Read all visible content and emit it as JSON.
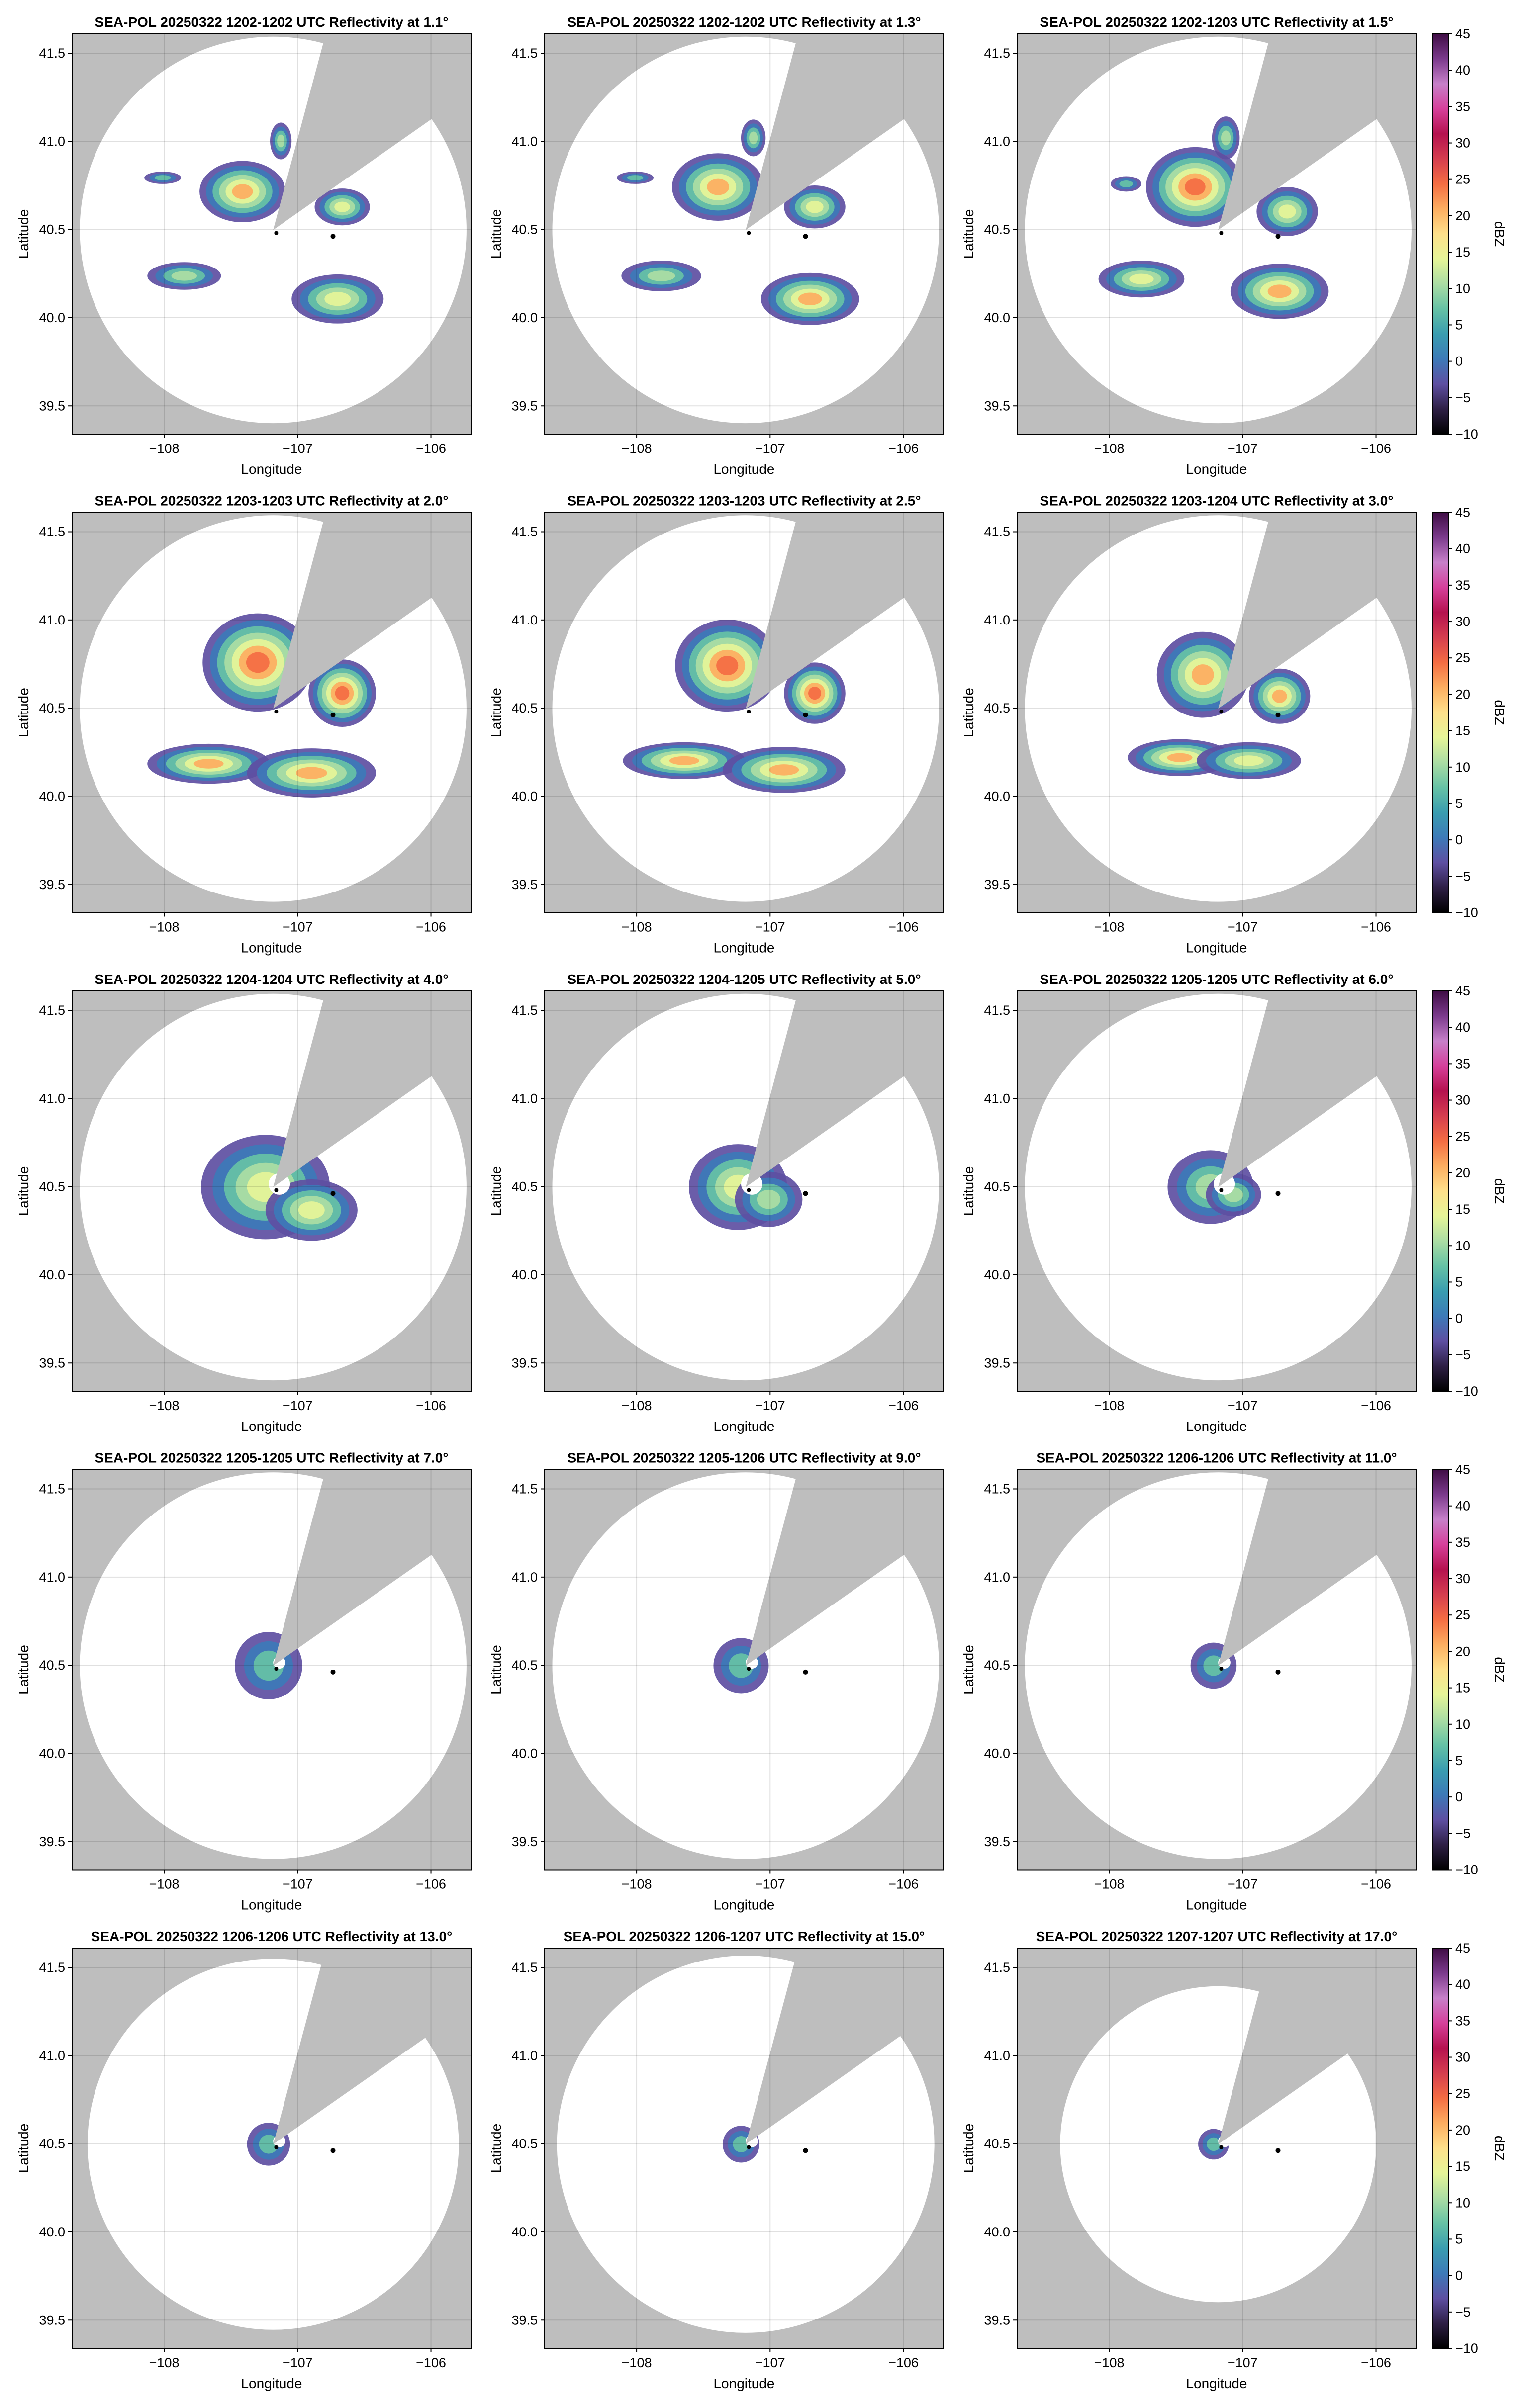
{
  "chart_data": [
    {
      "type": "ppi",
      "title": "SEA-POL 20250322 1202-1202 UTC Reflectivity at 1.1°",
      "xlabel": "Longitude",
      "ylabel": "Latitude",
      "xlim": [
        -108.69,
        -105.7
      ],
      "ylim": [
        39.34,
        41.61
      ],
      "xticks": [
        {
          "value": -108,
          "label": "−108"
        },
        {
          "value": -107,
          "label": "−107"
        },
        {
          "value": -106,
          "label": "−106"
        }
      ],
      "yticks": [
        39.5,
        {
          "value": 40,
          "label": "40.0"
        },
        40.5,
        {
          "value": 41,
          "label": "41.0"
        },
        41.5
      ],
      "grid": true
    },
    {
      "type": "ppi",
      "title": "SEA-POL 20250322 1202-1202 UTC Reflectivity at 1.3°",
      "xlabel": "Longitude",
      "ylabel": "Latitude",
      "xlim": [
        -108.69,
        -105.7
      ],
      "ylim": [
        39.34,
        41.61
      ],
      "xticks": [
        {
          "value": -108,
          "label": "−108"
        },
        {
          "value": -107,
          "label": "−107"
        },
        {
          "value": -106,
          "label": "−106"
        }
      ],
      "yticks": [
        39.5,
        {
          "value": 40,
          "label": "40.0"
        },
        40.5,
        {
          "value": 41,
          "label": "41.0"
        },
        41.5
      ],
      "grid": true
    },
    {
      "type": "ppi",
      "title": "SEA-POL 20250322 1202-1203 UTC Reflectivity at 1.5°",
      "xlabel": "Longitude",
      "ylabel": "Latitude",
      "xlim": [
        -108.69,
        -105.7
      ],
      "ylim": [
        39.34,
        41.61
      ],
      "xticks": [
        {
          "value": -108,
          "label": "−108"
        },
        {
          "value": -107,
          "label": "−107"
        },
        {
          "value": -106,
          "label": "−106"
        }
      ],
      "yticks": [
        39.5,
        {
          "value": 40,
          "label": "40.0"
        },
        40.5,
        {
          "value": 41,
          "label": "41.0"
        },
        41.5
      ],
      "grid": true,
      "colorbar": {
        "label": "dBZ",
        "lim": [
          -10,
          45
        ],
        "ticks": [
          {
            "value": -10,
            "label": "−10"
          },
          {
            "value": -5,
            "label": "−5"
          },
          0,
          5,
          10,
          15,
          20,
          25,
          30,
          35,
          40,
          45
        ],
        "colors": [
          "#000000",
          "#2e1f45",
          "#5e4fa2",
          "#3d7ab8",
          "#3a9db0",
          "#66c2a5",
          "#abdda4",
          "#e6f598",
          "#fee08b",
          "#fdae61",
          "#f46d43",
          "#d53e4f",
          "#b5124f",
          "#d6409b",
          "#c780c9",
          "#7b3a8c",
          "#3f0d45"
        ]
      }
    },
    {
      "type": "ppi",
      "title": "SEA-POL 20250322 1203-1203 UTC Reflectivity at 2.0°",
      "xlabel": "Longitude",
      "ylabel": "Latitude",
      "xlim": [
        -108.69,
        -105.7
      ],
      "ylim": [
        39.34,
        41.61
      ],
      "xticks": [
        {
          "value": -108,
          "label": "−108"
        },
        {
          "value": -107,
          "label": "−107"
        },
        {
          "value": -106,
          "label": "−106"
        }
      ],
      "yticks": [
        39.5,
        {
          "value": 40,
          "label": "40.0"
        },
        40.5,
        {
          "value": 41,
          "label": "41.0"
        },
        41.5
      ],
      "grid": true
    },
    {
      "type": "ppi",
      "title": "SEA-POL 20250322 1203-1203 UTC Reflectivity at 2.5°",
      "xlabel": "Longitude",
      "ylabel": "Latitude",
      "xlim": [
        -108.69,
        -105.7
      ],
      "ylim": [
        39.34,
        41.61
      ],
      "xticks": [
        {
          "value": -108,
          "label": "−108"
        },
        {
          "value": -107,
          "label": "−107"
        },
        {
          "value": -106,
          "label": "−106"
        }
      ],
      "yticks": [
        39.5,
        {
          "value": 40,
          "label": "40.0"
        },
        40.5,
        {
          "value": 41,
          "label": "41.0"
        },
        41.5
      ],
      "grid": true
    },
    {
      "type": "ppi",
      "title": "SEA-POL 20250322 1203-1204 UTC Reflectivity at 3.0°",
      "xlabel": "Longitude",
      "ylabel": "Latitude",
      "xlim": [
        -108.69,
        -105.7
      ],
      "ylim": [
        39.34,
        41.61
      ],
      "xticks": [
        {
          "value": -108,
          "label": "−108"
        },
        {
          "value": -107,
          "label": "−107"
        },
        {
          "value": -106,
          "label": "−106"
        }
      ],
      "yticks": [
        39.5,
        {
          "value": 40,
          "label": "40.0"
        },
        40.5,
        {
          "value": 41,
          "label": "41.0"
        },
        41.5
      ],
      "grid": true,
      "colorbar": {
        "label": "dBZ",
        "lim": [
          -10,
          45
        ],
        "ticks": [
          {
            "value": -10,
            "label": "−10"
          },
          {
            "value": -5,
            "label": "−5"
          },
          0,
          5,
          10,
          15,
          20,
          25,
          30,
          35,
          40,
          45
        ],
        "colors": [
          "#000000",
          "#2e1f45",
          "#5e4fa2",
          "#3d7ab8",
          "#3a9db0",
          "#66c2a5",
          "#abdda4",
          "#e6f598",
          "#fee08b",
          "#fdae61",
          "#f46d43",
          "#d53e4f",
          "#b5124f",
          "#d6409b",
          "#c780c9",
          "#7b3a8c",
          "#3f0d45"
        ]
      }
    },
    {
      "type": "ppi",
      "title": "SEA-POL 20250322 1204-1204 UTC Reflectivity at 4.0°",
      "xlabel": "Longitude",
      "ylabel": "Latitude",
      "xlim": [
        -108.69,
        -105.7
      ],
      "ylim": [
        39.34,
        41.61
      ],
      "xticks": [
        {
          "value": -108,
          "label": "−108"
        },
        {
          "value": -107,
          "label": "−107"
        },
        {
          "value": -106,
          "label": "−106"
        }
      ],
      "yticks": [
        39.5,
        {
          "value": 40,
          "label": "40.0"
        },
        40.5,
        {
          "value": 41,
          "label": "41.0"
        },
        41.5
      ],
      "grid": true
    },
    {
      "type": "ppi",
      "title": "SEA-POL 20250322 1204-1205 UTC Reflectivity at 5.0°",
      "xlabel": "Longitude",
      "ylabel": "Latitude",
      "xlim": [
        -108.69,
        -105.7
      ],
      "ylim": [
        39.34,
        41.61
      ],
      "xticks": [
        {
          "value": -108,
          "label": "−108"
        },
        {
          "value": -107,
          "label": "−107"
        },
        {
          "value": -106,
          "label": "−106"
        }
      ],
      "yticks": [
        39.5,
        {
          "value": 40,
          "label": "40.0"
        },
        40.5,
        {
          "value": 41,
          "label": "41.0"
        },
        41.5
      ],
      "grid": true
    },
    {
      "type": "ppi",
      "title": "SEA-POL 20250322 1205-1205 UTC Reflectivity at 6.0°",
      "xlabel": "Longitude",
      "ylabel": "Latitude",
      "xlim": [
        -108.69,
        -105.7
      ],
      "ylim": [
        39.34,
        41.61
      ],
      "xticks": [
        {
          "value": -108,
          "label": "−108"
        },
        {
          "value": -107,
          "label": "−107"
        },
        {
          "value": -106,
          "label": "−106"
        }
      ],
      "yticks": [
        39.5,
        {
          "value": 40,
          "label": "40.0"
        },
        40.5,
        {
          "value": 41,
          "label": "41.0"
        },
        41.5
      ],
      "grid": true,
      "colorbar": {
        "label": "dBZ",
        "lim": [
          -10,
          45
        ],
        "ticks": [
          {
            "value": -10,
            "label": "−10"
          },
          {
            "value": -5,
            "label": "−5"
          },
          0,
          5,
          10,
          15,
          20,
          25,
          30,
          35,
          40,
          45
        ],
        "colors": [
          "#000000",
          "#2e1f45",
          "#5e4fa2",
          "#3d7ab8",
          "#3a9db0",
          "#66c2a5",
          "#abdda4",
          "#e6f598",
          "#fee08b",
          "#fdae61",
          "#f46d43",
          "#d53e4f",
          "#b5124f",
          "#d6409b",
          "#c780c9",
          "#7b3a8c",
          "#3f0d45"
        ]
      }
    },
    {
      "type": "ppi",
      "title": "SEA-POL 20250322 1205-1205 UTC Reflectivity at 7.0°",
      "xlabel": "Longitude",
      "ylabel": "Latitude",
      "xlim": [
        -108.69,
        -105.7
      ],
      "ylim": [
        39.34,
        41.61
      ],
      "xticks": [
        {
          "value": -108,
          "label": "−108"
        },
        {
          "value": -107,
          "label": "−107"
        },
        {
          "value": -106,
          "label": "−106"
        }
      ],
      "yticks": [
        39.5,
        {
          "value": 40,
          "label": "40.0"
        },
        40.5,
        {
          "value": 41,
          "label": "41.0"
        },
        41.5
      ],
      "grid": true
    },
    {
      "type": "ppi",
      "title": "SEA-POL 20250322 1205-1206 UTC Reflectivity at 9.0°",
      "xlabel": "Longitude",
      "ylabel": "Latitude",
      "xlim": [
        -108.69,
        -105.7
      ],
      "ylim": [
        39.34,
        41.61
      ],
      "xticks": [
        {
          "value": -108,
          "label": "−108"
        },
        {
          "value": -107,
          "label": "−107"
        },
        {
          "value": -106,
          "label": "−106"
        }
      ],
      "yticks": [
        39.5,
        {
          "value": 40,
          "label": "40.0"
        },
        40.5,
        {
          "value": 41,
          "label": "41.0"
        },
        41.5
      ],
      "grid": true
    },
    {
      "type": "ppi",
      "title": "SEA-POL 20250322 1206-1206 UTC Reflectivity at 11.0°",
      "xlabel": "Longitude",
      "ylabel": "Latitude",
      "xlim": [
        -108.69,
        -105.7
      ],
      "ylim": [
        39.34,
        41.61
      ],
      "xticks": [
        {
          "value": -108,
          "label": "−108"
        },
        {
          "value": -107,
          "label": "−107"
        },
        {
          "value": -106,
          "label": "−106"
        }
      ],
      "yticks": [
        39.5,
        {
          "value": 40,
          "label": "40.0"
        },
        40.5,
        {
          "value": 41,
          "label": "41.0"
        },
        41.5
      ],
      "grid": true,
      "colorbar": {
        "label": "dBZ",
        "lim": [
          -10,
          45
        ],
        "ticks": [
          {
            "value": -10,
            "label": "−10"
          },
          {
            "value": -5,
            "label": "−5"
          },
          0,
          5,
          10,
          15,
          20,
          25,
          30,
          35,
          40,
          45
        ],
        "colors": [
          "#000000",
          "#2e1f45",
          "#5e4fa2",
          "#3d7ab8",
          "#3a9db0",
          "#66c2a5",
          "#abdda4",
          "#e6f598",
          "#fee08b",
          "#fdae61",
          "#f46d43",
          "#d53e4f",
          "#b5124f",
          "#d6409b",
          "#c780c9",
          "#7b3a8c",
          "#3f0d45"
        ]
      }
    },
    {
      "type": "ppi",
      "title": "SEA-POL 20250322 1206-1206 UTC Reflectivity at 13.0°",
      "xlabel": "Longitude",
      "ylabel": "Latitude",
      "xlim": [
        -108.69,
        -105.7
      ],
      "ylim": [
        39.34,
        41.61
      ],
      "xticks": [
        {
          "value": -108,
          "label": "−108"
        },
        {
          "value": -107,
          "label": "−107"
        },
        {
          "value": -106,
          "label": "−106"
        }
      ],
      "yticks": [
        39.5,
        {
          "value": 40,
          "label": "40.0"
        },
        40.5,
        {
          "value": 41,
          "label": "41.0"
        },
        41.5
      ],
      "grid": true
    },
    {
      "type": "ppi",
      "title": "SEA-POL 20250322 1206-1207 UTC Reflectivity at 15.0°",
      "xlabel": "Longitude",
      "ylabel": "Latitude",
      "xlim": [
        -108.69,
        -105.7
      ],
      "ylim": [
        39.34,
        41.61
      ],
      "xticks": [
        {
          "value": -108,
          "label": "−108"
        },
        {
          "value": -107,
          "label": "−107"
        },
        {
          "value": -106,
          "label": "−106"
        }
      ],
      "yticks": [
        39.5,
        {
          "value": 40,
          "label": "40.0"
        },
        40.5,
        {
          "value": 41,
          "label": "41.0"
        },
        41.5
      ],
      "grid": true
    },
    {
      "type": "ppi",
      "title": "SEA-POL 20250322 1207-1207 UTC Reflectivity at 17.0°",
      "xlabel": "Longitude",
      "ylabel": "Latitude",
      "xlim": [
        -108.69,
        -105.7
      ],
      "ylim": [
        39.34,
        41.61
      ],
      "xticks": [
        {
          "value": -108,
          "label": "−108"
        },
        {
          "value": -107,
          "label": "−107"
        },
        {
          "value": -106,
          "label": "−106"
        }
      ],
      "yticks": [
        39.5,
        {
          "value": 40,
          "label": "40.0"
        },
        40.5,
        {
          "value": 41,
          "label": "41.0"
        },
        41.5
      ],
      "grid": true,
      "colorbar": {
        "label": "dBZ",
        "lim": [
          -10,
          45
        ],
        "ticks": [
          {
            "value": -10,
            "label": "−10"
          },
          {
            "value": -5,
            "label": "−5"
          },
          0,
          5,
          10,
          15,
          20,
          25,
          30,
          35,
          40,
          45
        ],
        "colors": [
          "#000000",
          "#2e1f45",
          "#5e4fa2",
          "#3d7ab8",
          "#3a9db0",
          "#66c2a5",
          "#abdda4",
          "#e6f598",
          "#fee08b",
          "#fdae61",
          "#f46d43",
          "#d53e4f",
          "#b5124f",
          "#d6409b",
          "#c780c9",
          "#7b3a8c",
          "#3f0d45"
        ]
      }
    }
  ]
}
